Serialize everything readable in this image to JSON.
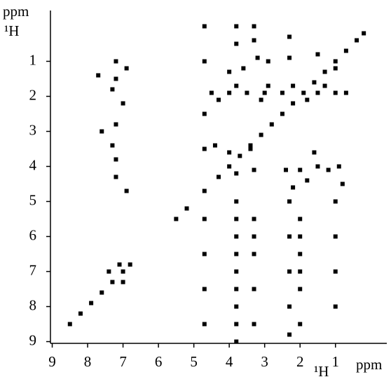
{
  "chart_data": {
    "type": "scatter",
    "x_label": "ppm",
    "x_nucleus": "¹H",
    "y_label": "ppm",
    "y_nucleus": "¹H",
    "xlim": [
      9.05,
      -0.45
    ],
    "ylim": [
      9.05,
      -0.45
    ],
    "xticks": [
      9,
      8,
      7,
      6,
      5,
      4,
      3,
      2,
      1
    ],
    "yticks": [
      1,
      2,
      3,
      4,
      5,
      6,
      7,
      8,
      9
    ],
    "color": "#000000",
    "x": [
      8.5,
      8.2,
      7.9,
      7.6,
      7.3,
      7.0,
      6.8,
      5.5,
      5.2,
      4.7,
      4.3,
      4.0,
      3.7,
      3.4,
      3.1,
      2.8,
      2.5,
      2.2,
      1.9,
      1.6,
      1.3,
      1.0,
      0.7,
      0.4,
      0.2,
      7.2,
      7.2,
      7.3,
      7.0,
      7.2,
      7.3,
      7.2,
      7.2,
      6.9,
      7.6,
      7.0,
      7.4,
      7.1,
      7.7,
      6.9,
      4.7,
      4.7,
      4.7,
      4.7,
      4.7,
      4.7,
      4.7,
      4.7,
      4.5,
      4.0,
      3.5,
      3.0,
      2.5,
      1.5,
      1.0,
      0.7,
      3.8,
      2.9,
      2.2,
      1.3,
      4.3,
      3.1,
      1.8,
      3.6,
      3.2,
      2.9,
      2.3,
      1.5,
      1.0,
      4.0,
      3.8,
      3.3,
      2.4,
      2.0,
      1.5,
      1.2,
      0.9,
      2.2,
      1.8,
      4.0,
      3.4,
      4.4,
      0.8,
      1.6,
      3.8,
      3.8,
      3.8,
      3.8,
      3.8,
      3.8,
      3.8,
      3.8,
      3.8,
      3.8,
      3.8,
      3.3,
      3.3,
      3.3,
      3.3,
      3.3,
      3.3,
      3.3,
      2.3,
      2.3,
      2.3,
      2.3,
      2.3,
      2.3,
      2.0,
      2.0,
      2.0,
      2.0,
      2.0,
      2.0,
      1.0,
      1.0,
      1.0,
      1.0
    ],
    "values": [
      8.5,
      8.2,
      7.9,
      7.6,
      7.3,
      7.0,
      6.8,
      5.5,
      5.2,
      4.7,
      4.3,
      4.0,
      3.7,
      3.4,
      3.1,
      2.8,
      2.5,
      2.2,
      1.9,
      1.6,
      1.3,
      1.0,
      0.7,
      0.4,
      0.2,
      1.0,
      1.5,
      1.8,
      2.2,
      2.8,
      3.4,
      3.8,
      4.3,
      4.7,
      3.0,
      7.3,
      7.0,
      6.8,
      1.4,
      1.2,
      0,
      1,
      2.5,
      3.5,
      5.5,
      6.5,
      7.5,
      8.5,
      1.9,
      1.9,
      1.9,
      1.9,
      1.9,
      1.9,
      1.9,
      1.9,
      1.7,
      1.7,
      1.7,
      1.7,
      2.1,
      2.1,
      2.1,
      1.2,
      0.9,
      1.0,
      0.9,
      0.8,
      1.2,
      1.3,
      4.2,
      4.1,
      4.1,
      4.1,
      4.0,
      4.1,
      4.0,
      4.6,
      4.4,
      3.6,
      3.5,
      3.4,
      4.5,
      3.6,
      5,
      5.5,
      6,
      6.5,
      7,
      7.5,
      8,
      8.5,
      9,
      0,
      0.5,
      0,
      0.4,
      5.5,
      6.5,
      7.5,
      8.5,
      6,
      5,
      6,
      7,
      8,
      8.8,
      0.3,
      5.5,
      6.5,
      7.5,
      8.5,
      6,
      7,
      5,
      6,
      7,
      8
    ]
  }
}
